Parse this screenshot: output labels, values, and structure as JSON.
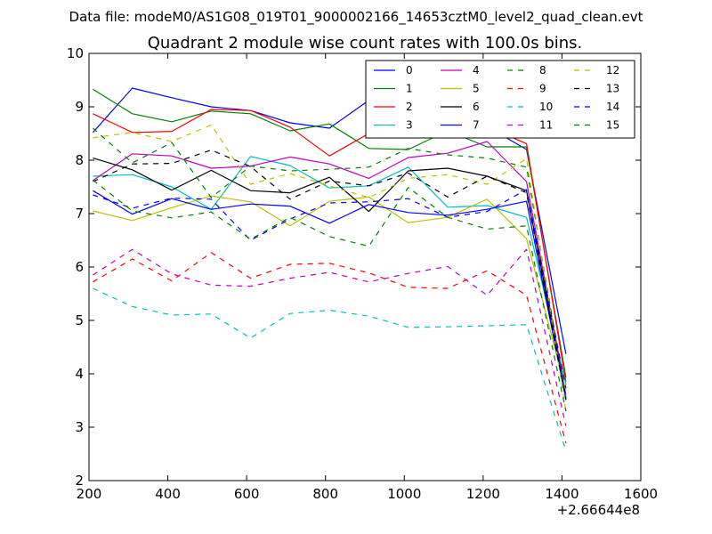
{
  "chart_data": {
    "type": "line",
    "figure_title": "Data file: modeM0/AS1G08_019T01_9000002166_14653cztM0_level2_quad_clean.evt",
    "title": "Quadrant 2 module wise count rates with 100.0s bins.",
    "xlabel": "",
    "ylabel": "",
    "x_offset_label": "+2.66644e8",
    "xlim": [
      200,
      1600
    ],
    "ylim": [
      2,
      10
    ],
    "x_ticks": [
      200,
      400,
      600,
      800,
      1000,
      1200,
      1400,
      1600
    ],
    "y_ticks": [
      2,
      3,
      4,
      5,
      6,
      7,
      8,
      9,
      10
    ],
    "x_tick_labels": [
      "200",
      "400",
      "600",
      "800",
      "1000",
      "1200",
      "1400",
      "1600"
    ],
    "y_tick_labels": [
      "2",
      "3",
      "4",
      "5",
      "6",
      "7",
      "8",
      "9",
      "10"
    ],
    "legend_position": "top-right",
    "legend_columns": 4,
    "x": [
      210,
      310,
      410,
      510,
      610,
      710,
      810,
      910,
      1010,
      1110,
      1210,
      1310,
      1410
    ],
    "series": [
      {
        "name": "0",
        "color": "#0000ff",
        "dash": "solid",
        "values": [
          8.52,
          9.35,
          9.17,
          9.0,
          8.93,
          8.7,
          8.6,
          9.12,
          9.0,
          8.62,
          8.63,
          8.2,
          4.37
        ]
      },
      {
        "name": "1",
        "color": "#008000",
        "dash": "solid",
        "values": [
          9.33,
          8.87,
          8.72,
          8.92,
          8.87,
          8.55,
          8.68,
          8.22,
          8.2,
          8.55,
          8.25,
          8.25,
          3.93
        ]
      },
      {
        "name": "2",
        "color": "#ff0000",
        "dash": "solid",
        "values": [
          8.87,
          8.52,
          8.54,
          8.95,
          8.93,
          8.62,
          8.08,
          8.5,
          8.73,
          8.88,
          8.63,
          8.31,
          3.84
        ]
      },
      {
        "name": "3",
        "color": "#00bfbf",
        "dash": "solid",
        "values": [
          7.7,
          7.73,
          7.5,
          7.08,
          8.07,
          7.9,
          7.48,
          7.52,
          7.87,
          7.12,
          7.15,
          6.93,
          3.8
        ]
      },
      {
        "name": "4",
        "color": "#bf00bf",
        "dash": "solid",
        "values": [
          7.62,
          8.12,
          8.08,
          7.85,
          7.89,
          8.06,
          7.93,
          7.66,
          8.05,
          8.13,
          8.35,
          7.6,
          3.6
        ]
      },
      {
        "name": "5",
        "color": "#bfbf00",
        "dash": "solid",
        "values": [
          7.05,
          6.87,
          7.11,
          7.33,
          7.22,
          6.77,
          7.23,
          7.31,
          6.83,
          6.93,
          7.27,
          6.53,
          3.68
        ]
      },
      {
        "name": "6",
        "color": "#000000",
        "dash": "solid",
        "values": [
          8.04,
          7.82,
          7.44,
          7.81,
          7.43,
          7.39,
          7.68,
          7.04,
          7.8,
          7.85,
          7.7,
          7.43,
          3.55
        ]
      },
      {
        "name": "7",
        "color": "#0000ff",
        "dash": "solid",
        "values": [
          7.43,
          6.99,
          7.28,
          7.08,
          7.18,
          7.14,
          6.82,
          7.17,
          7.02,
          6.97,
          7.08,
          7.23,
          3.52
        ]
      },
      {
        "name": "8",
        "color": "#008000",
        "dash": "dashed",
        "values": [
          8.6,
          7.95,
          8.33,
          7.3,
          7.89,
          7.8,
          7.83,
          7.87,
          8.22,
          8.1,
          8.04,
          7.87,
          3.55
        ]
      },
      {
        "name": "9",
        "color": "#ff0000",
        "dash": "dashed",
        "values": [
          5.72,
          6.15,
          5.74,
          6.27,
          5.79,
          6.05,
          6.07,
          5.89,
          5.62,
          5.6,
          5.93,
          5.47,
          2.7
        ]
      },
      {
        "name": "10",
        "color": "#00bfbf",
        "dash": "dashed",
        "values": [
          5.6,
          5.26,
          5.1,
          5.12,
          4.67,
          5.13,
          5.19,
          5.08,
          4.87,
          4.88,
          4.9,
          4.92,
          2.55
        ]
      },
      {
        "name": "11",
        "color": "#bf00bf",
        "dash": "dashed",
        "values": [
          5.85,
          6.33,
          5.87,
          5.66,
          5.64,
          5.79,
          5.9,
          5.72,
          5.88,
          6.01,
          5.47,
          6.33,
          3.02
        ]
      },
      {
        "name": "12",
        "color": "#bfbf00",
        "dash": "dashed",
        "values": [
          8.42,
          8.52,
          8.35,
          8.66,
          7.55,
          7.75,
          7.52,
          7.3,
          7.66,
          7.73,
          7.55,
          8.03,
          3.3
        ]
      },
      {
        "name": "13",
        "color": "#000000",
        "dash": "dashed",
        "values": [
          7.6,
          7.93,
          7.94,
          8.19,
          7.88,
          7.27,
          7.61,
          7.52,
          7.76,
          7.31,
          7.7,
          7.39,
          3.51
        ]
      },
      {
        "name": "14",
        "color": "#0000ff",
        "dash": "dashed",
        "values": [
          7.35,
          7.1,
          7.29,
          7.27,
          6.5,
          6.9,
          7.2,
          7.22,
          7.28,
          6.93,
          7.04,
          7.45,
          3.73
        ]
      },
      {
        "name": "15",
        "color": "#008000",
        "dash": "dashed",
        "values": [
          7.63,
          7.05,
          6.92,
          7.03,
          6.52,
          6.93,
          6.57,
          6.39,
          7.49,
          6.93,
          6.71,
          6.77,
          3.3
        ]
      }
    ]
  }
}
